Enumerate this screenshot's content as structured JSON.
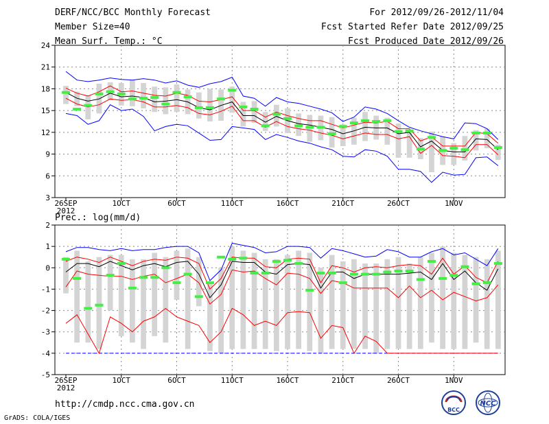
{
  "header": {
    "left": [
      "DERF/NCC/BCC Monthly Forecast",
      "Member Size=40",
      "Mean Surf. Temp.: °C"
    ],
    "right": [
      "For 2012/09/26-2012/11/04",
      "Fcst Started Refer Date 2012/09/25",
      "Fcst Produced Date 2012/09/26"
    ]
  },
  "precip_label": "Prec.: log(mm/d)",
  "footer": {
    "url": "http://cmdp.ncc.cma.gov.cn",
    "credit": "GrADS: COLA/IGES"
  },
  "logos": {
    "left_text": "BCC",
    "right_text": "NCC"
  },
  "colors": {
    "envelope": "#0000ff",
    "spread": "#ff0000",
    "mean": "#000000",
    "median": "#44ee44",
    "box": "#d4d4d4"
  },
  "chart_data": [
    {
      "type": "box-ensemble",
      "title": "Mean Surf. Temp.: °C",
      "ylim": [
        3,
        24
      ],
      "yticks": [
        3,
        6,
        9,
        12,
        15,
        18,
        21,
        24
      ],
      "xticks": [
        {
          "day": 1,
          "label": "26SEP",
          "sub": "2012"
        },
        {
          "day": 6,
          "label": "1OCT"
        },
        {
          "day": 11,
          "label": "6OCT"
        },
        {
          "day": 16,
          "label": "11OCT"
        },
        {
          "day": 21,
          "label": "16OCT"
        },
        {
          "day": 26,
          "label": "21OCT"
        },
        {
          "day": 31,
          "label": "26OCT"
        },
        {
          "day": 36,
          "label": "1NOV"
        }
      ],
      "days": 40,
      "max": [
        20.4,
        19.2,
        19,
        19.2,
        19.5,
        19.3,
        19.2,
        19.4,
        19.2,
        18.8,
        19.1,
        18.5,
        18.2,
        18.7,
        19,
        19.6,
        17,
        16.7,
        15.6,
        16.8,
        16.2,
        16,
        15.6,
        15.2,
        14.7,
        13.5,
        14.1,
        15.5,
        15.2,
        14.6,
        13.6,
        12.7,
        12.2,
        11.8,
        11.4,
        11.1,
        13.3,
        13.2,
        12.5,
        11
      ],
      "mean": [
        17.5,
        16.7,
        16.3,
        16.6,
        17.4,
        16.9,
        17,
        16.8,
        16.2,
        16.3,
        16.5,
        16.2,
        15.4,
        15.1,
        15.7,
        16.2,
        14.3,
        14.3,
        13.4,
        14.2,
        13.6,
        13.2,
        13,
        12.7,
        12.4,
        11.8,
        12.2,
        12.7,
        12.6,
        12.6,
        11.8,
        12,
        10,
        10.8,
        9.5,
        9.3,
        9.3,
        11.1,
        11,
        9.6
      ],
      "upper": [
        18.1,
        17.4,
        17,
        17.6,
        18.4,
        17.6,
        17.7,
        17.4,
        17.1,
        17,
        17.4,
        17.1,
        16.3,
        16.2,
        16.5,
        16.9,
        15,
        15,
        14.1,
        14.8,
        14.3,
        13.9,
        13.6,
        13.6,
        13.1,
        12.6,
        13,
        13.4,
        13.3,
        13.5,
        12.5,
        12.5,
        10.8,
        11.4,
        10.1,
        10.1,
        10.1,
        12,
        11.8,
        10.5
      ],
      "lower": [
        16.7,
        15.9,
        15.5,
        15.8,
        16.6,
        16.4,
        16.5,
        16.2,
        15.5,
        15.5,
        15.7,
        15.4,
        14.6,
        14.4,
        14.9,
        15.6,
        13.6,
        13.6,
        12.7,
        13.5,
        12.8,
        12.5,
        12.3,
        11.9,
        11.6,
        11.1,
        11.5,
        11.9,
        11.7,
        11.7,
        11.1,
        11.4,
        9.1,
        10.2,
        8.8,
        8.7,
        8.5,
        10.3,
        10.3,
        8.9
      ],
      "min": [
        14.6,
        14.3,
        13.1,
        13.6,
        15.8,
        15,
        15.2,
        14.2,
        12.2,
        12.8,
        13.1,
        12.9,
        11.9,
        10.9,
        11,
        12.8,
        12.6,
        12.4,
        11,
        11.7,
        11.3,
        10.8,
        10.5,
        10,
        9.6,
        8.7,
        8.6,
        9.6,
        9.4,
        8.7,
        6.9,
        6.9,
        6.6,
        5.1,
        6.5,
        6.1,
        6.2,
        8.5,
        8.6,
        7.4
      ],
      "box_hi": [
        18.4,
        17.6,
        17.1,
        18.7,
        18.9,
        18.8,
        19.2,
        18.8,
        18.3,
        18.2,
        18.6,
        17.9,
        17.5,
        18,
        17.9,
        18.3,
        16.2,
        16.3,
        14.8,
        15.8,
        15.3,
        14.6,
        14.4,
        14.3,
        14.1,
        13.1,
        14,
        14.8,
        14.3,
        14,
        13.2,
        12.2,
        11.2,
        12.1,
        11.4,
        10.5,
        11.5,
        12.3,
        12.5,
        10.3
      ],
      "box_lo": [
        15.9,
        15.6,
        13.8,
        14.6,
        16.4,
        15.7,
        15.6,
        15.3,
        14.8,
        14.5,
        14.8,
        14.5,
        13.9,
        13.5,
        13.6,
        14.7,
        12.8,
        13.3,
        12.2,
        12.8,
        11.9,
        11.5,
        10.7,
        10.9,
        9.9,
        10.1,
        10.3,
        10.8,
        11,
        10.3,
        8.5,
        8.5,
        8.3,
        6.5,
        7.5,
        7.5,
        8.1,
        9.5,
        9.8,
        8.2
      ],
      "median": [
        17.5,
        15.2,
        15.7,
        17.3,
        17.6,
        17.3,
        16.6,
        16.7,
        16.8,
        15.9,
        17.5,
        16.9,
        15.4,
        15.4,
        16.6,
        17.8,
        15.5,
        15.2,
        12.9,
        14.5,
        13.9,
        12.9,
        12.7,
        12.7,
        11.8,
        12.8,
        13.3,
        13.6,
        13.5,
        13.6,
        12.1,
        12.2,
        9.7,
        11.3,
        9.5,
        9.8,
        9.6,
        11.9,
        11.9,
        9.9
      ]
    },
    {
      "type": "box-ensemble",
      "title": "Prec.: log(mm/d)",
      "ylim": [
        -5,
        2
      ],
      "yticks": [
        -5,
        -4,
        -3,
        -2,
        -1,
        0,
        1,
        2
      ],
      "xticks": [
        {
          "day": 1,
          "label": "26SEP",
          "sub": "2012"
        },
        {
          "day": 6,
          "label": "1OCT"
        },
        {
          "day": 11,
          "label": "6OCT"
        },
        {
          "day": 16,
          "label": "11OCT"
        },
        {
          "day": 21,
          "label": "16OCT"
        },
        {
          "day": 26,
          "label": "21OCT"
        },
        {
          "day": 31,
          "label": "26OCT"
        },
        {
          "day": 36,
          "label": "1NOV"
        }
      ],
      "days": 40,
      "floor": -4,
      "max": [
        0.75,
        0.95,
        0.95,
        0.85,
        0.8,
        0.9,
        0.8,
        0.85,
        0.85,
        0.95,
        1,
        1,
        0.7,
        -0.6,
        -0.1,
        1.15,
        1.05,
        0.95,
        0.7,
        0.75,
        1,
        1,
        0.95,
        0.45,
        0.9,
        0.8,
        0.65,
        0.5,
        0.55,
        0.85,
        0.75,
        0.5,
        0.5,
        0.75,
        0.9,
        0.6,
        0.7,
        0.4,
        0.1,
        0.9
      ],
      "mean": [
        -0.2,
        0.2,
        0.2,
        0.05,
        0.3,
        0.1,
        -0.1,
        0.1,
        0.2,
        0.05,
        0.25,
        0.3,
        -0.3,
        -1.4,
        -0.8,
        0.3,
        0.25,
        0.25,
        -0.2,
        -0.3,
        0.15,
        0.2,
        0.15,
        -0.95,
        -0.2,
        -0.2,
        -0.5,
        -0.3,
        -0.3,
        -0.3,
        -0.3,
        -0.25,
        -0.2,
        -0.55,
        0.2,
        -0.55,
        -0.15,
        -0.7,
        -1.05,
        -0.05
      ],
      "upper": [
        0.3,
        0.5,
        0.4,
        0.25,
        0.5,
        0.3,
        0.1,
        0.3,
        0.4,
        0.35,
        0.5,
        0.45,
        0.2,
        -1,
        -0.5,
        0.5,
        0.45,
        0.45,
        0.05,
        0,
        0.4,
        0.45,
        0.4,
        -0.7,
        0.1,
        0,
        -0.2,
        0,
        0.05,
        0,
        0.1,
        0.15,
        0.1,
        -0.3,
        0.45,
        -0.3,
        0.1,
        -0.45,
        -0.7,
        0.3
      ],
      "lower": [
        -0.9,
        -0.15,
        -0.3,
        -0.35,
        -0.4,
        -0.4,
        -0.55,
        -0.4,
        -0.3,
        -0.7,
        -0.5,
        -0.3,
        -0.7,
        -1.7,
        -1.25,
        -0.1,
        -0.2,
        -0.15,
        -0.5,
        -0.8,
        -0.25,
        -0.3,
        -0.5,
        -1.2,
        -0.6,
        -0.7,
        -0.95,
        -0.95,
        -0.95,
        -0.95,
        -1.4,
        -0.85,
        -1.4,
        -1.05,
        -1.5,
        -1.15,
        -1.35,
        -1.55,
        -1.4,
        -0.8
      ],
      "min": [
        -2.6,
        -2.2,
        -3.1,
        -4,
        -2.3,
        -2.6,
        -3,
        -2.5,
        -2.3,
        -1.9,
        -2.3,
        -2.5,
        -2.7,
        -3.5,
        -3,
        -1.9,
        -2.2,
        -2.7,
        -2.5,
        -2.7,
        -2.1,
        -2.05,
        -2.1,
        -3.3,
        -2.7,
        -2.8,
        -4,
        -3.2,
        -3.45,
        -4,
        -4,
        -4,
        -4,
        -4,
        -4,
        -4,
        -4,
        -4,
        -4,
        -4
      ],
      "box_hi": [
        0.5,
        0.8,
        0.3,
        0.5,
        0.6,
        0.6,
        0.4,
        0.4,
        0.7,
        0.5,
        0.8,
        0.9,
        0.5,
        -0.7,
        0,
        1,
        0.8,
        0.7,
        0.4,
        0.4,
        0.6,
        0.8,
        0.7,
        0,
        0.6,
        0.3,
        0.4,
        0.2,
        0.2,
        0.4,
        0.5,
        0.2,
        0.5,
        0.7,
        1,
        0.7,
        0.6,
        0.5,
        0.4,
        0.8
      ],
      "box_lo": [
        -1.2,
        -3.5,
        -3.5,
        -3.8,
        -2,
        -3.2,
        -3.5,
        -3.8,
        -3.2,
        -3.5,
        -1.5,
        -3.8,
        -1.8,
        -3.9,
        -4,
        -3.8,
        -3.8,
        -3.8,
        -3.8,
        -3.9,
        -3.8,
        -3.8,
        -3.9,
        -4,
        -3.8,
        -3.8,
        -3.8,
        -3.8,
        -4,
        -3.8,
        -3.8,
        -3.8,
        -3.8,
        -3.5,
        -3.8,
        -3.8,
        -3.8,
        -3.5,
        -3.8,
        -3.8
      ],
      "median": [
        0.4,
        -0.5,
        -1.9,
        -1.75,
        -0.35,
        0.2,
        -0.95,
        -0.45,
        -0.45,
        0,
        -0.7,
        -0.3,
        -1.35,
        -0.7,
        0.5,
        0.4,
        0.45,
        -0.25,
        -0.25,
        0.3,
        0.35,
        0.2,
        -1.05,
        -0.25,
        -0.25,
        -0.7,
        -0.3,
        -0.3,
        -0.3,
        -0.2,
        -0.15,
        -0.15,
        -0.55,
        0.3,
        -0.5,
        -0.35,
        0.05,
        -0.75,
        -0.7,
        0.2
      ]
    }
  ]
}
